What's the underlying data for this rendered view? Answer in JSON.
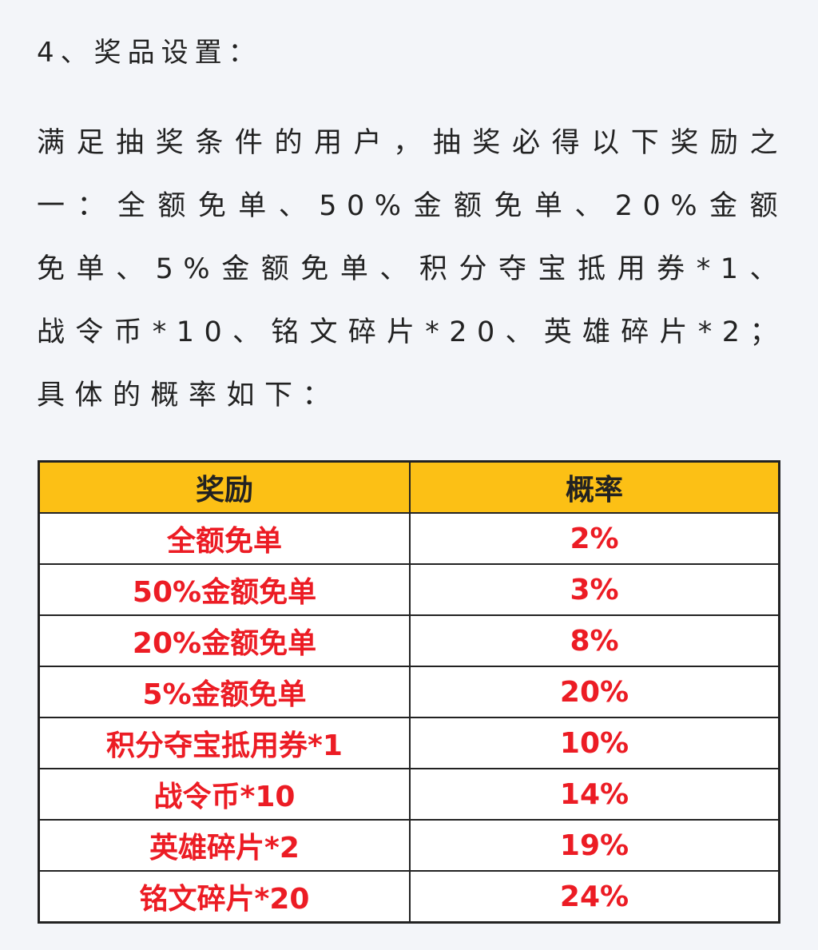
{
  "heading": "4、奖品设置：",
  "paragraph": "满足抽奖条件的用户，抽奖必得以下奖励之一：全额免单、50%金额免单、20%金额免单、5%金额免单、积分夺宝抵用券*1、战令币*10、铭文碎片*20、英雄碎片*2；具体的概率如下：",
  "table": {
    "header_color": "#fcc015",
    "text_color": "#ec1c24",
    "columns": [
      "奖励",
      "概率"
    ],
    "rows": [
      [
        "全额免单",
        "2%"
      ],
      [
        "50%金额免单",
        "3%"
      ],
      [
        "20%金额免单",
        "8%"
      ],
      [
        "5%金额免单",
        "20%"
      ],
      [
        "积分夺宝抵用券*1",
        "10%"
      ],
      [
        "战令币*10",
        "14%"
      ],
      [
        "英雄碎片*2",
        "19%"
      ],
      [
        "铭文碎片*20",
        "24%"
      ]
    ]
  }
}
